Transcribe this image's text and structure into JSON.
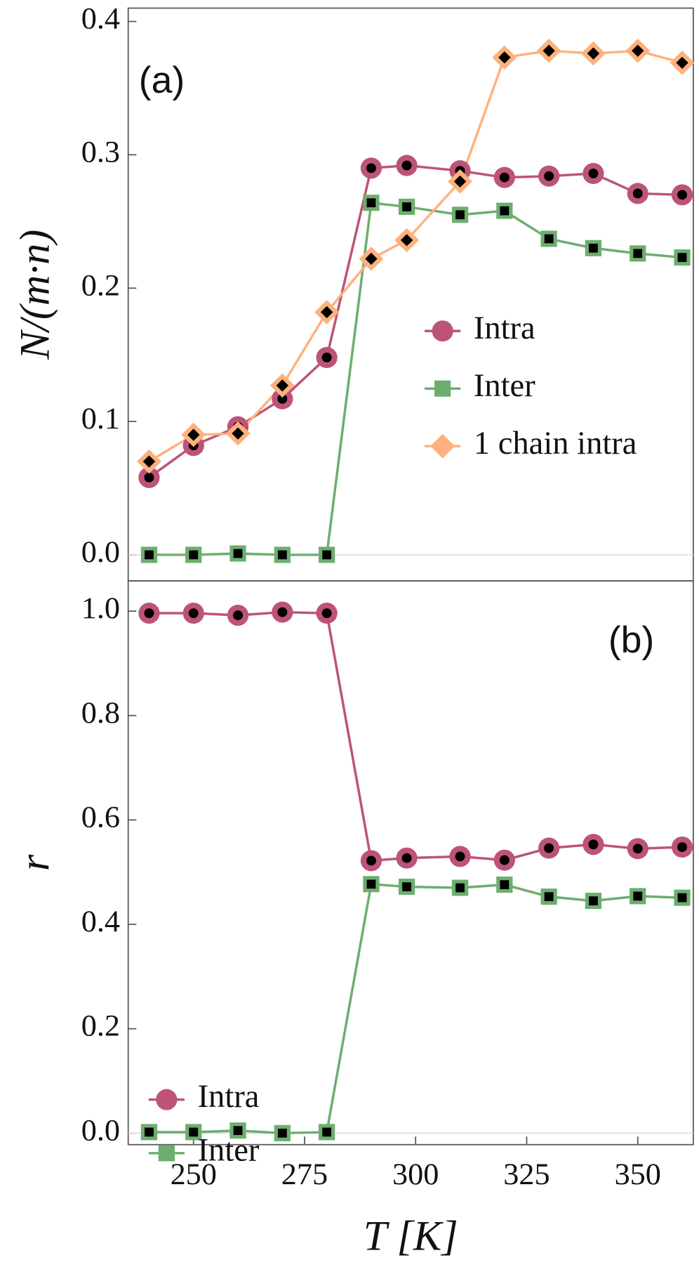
{
  "chart_data": [
    {
      "type": "line",
      "annotation": "(a)",
      "ylabel": "N/(m·n)",
      "legend": "center right",
      "zero_line": true,
      "x": [
        240,
        250,
        260,
        270,
        280,
        290,
        298,
        310,
        320,
        330,
        340,
        350,
        360
      ],
      "xlim": [
        235.3,
        362.5
      ],
      "ylim": [
        -0.0195,
        0.41
      ],
      "yticks": [
        {
          "value": 0,
          "label": "0.0"
        },
        0.1,
        0.2,
        0.3,
        0.4
      ],
      "series": [
        {
          "name": "Intra",
          "color": "#bd5379",
          "marker": "circle",
          "values": [
            0.058,
            0.082,
            0.096,
            0.117,
            0.148,
            0.29,
            0.292,
            0.288,
            0.283,
            0.284,
            0.286,
            0.271,
            0.27
          ]
        },
        {
          "name": "Inter",
          "color": "#6dae6e",
          "marker": "square",
          "values": [
            0,
            0,
            0.001,
            0,
            0,
            0.264,
            0.261,
            0.255,
            0.258,
            0.237,
            0.23,
            0.226,
            0.223
          ]
        },
        {
          "name": "1 chain intra",
          "color": "#fdb27e",
          "marker": "diamond",
          "values": [
            0.07,
            0.09,
            0.091,
            0.127,
            0.182,
            0.222,
            0.236,
            0.28,
            0.373,
            0.378,
            0.376,
            0.378,
            0.369
          ]
        }
      ]
    },
    {
      "type": "line",
      "annotation": "(b)",
      "ylabel": "r",
      "xlabel": "T [K]",
      "legend": "center left",
      "zero_line": true,
      "x": [
        240,
        250,
        260,
        270,
        280,
        290,
        298,
        310,
        320,
        330,
        340,
        350,
        360
      ],
      "xlim": [
        235.3,
        362.5
      ],
      "ylim": [
        -0.022,
        1.058
      ],
      "xticks": [
        250,
        275,
        300,
        325,
        350
      ],
      "yticks": [
        {
          "value": 0,
          "label": "0.0"
        },
        0.2,
        0.4,
        0.6,
        0.8,
        {
          "value": 1,
          "label": "1.0"
        }
      ],
      "series": [
        {
          "name": "Intra",
          "color": "#bd5379",
          "marker": "circle",
          "values": [
            0.996,
            0.996,
            0.992,
            0.998,
            0.996,
            0.522,
            0.527,
            0.53,
            0.523,
            0.546,
            0.553,
            0.545,
            0.548
          ]
        },
        {
          "name": "Inter",
          "color": "#6dae6e",
          "marker": "square",
          "values": [
            0.002,
            0.002,
            0.005,
            0,
            0.002,
            0.477,
            0.472,
            0.47,
            0.476,
            0.453,
            0.445,
            0.454,
            0.451
          ]
        }
      ]
    }
  ]
}
